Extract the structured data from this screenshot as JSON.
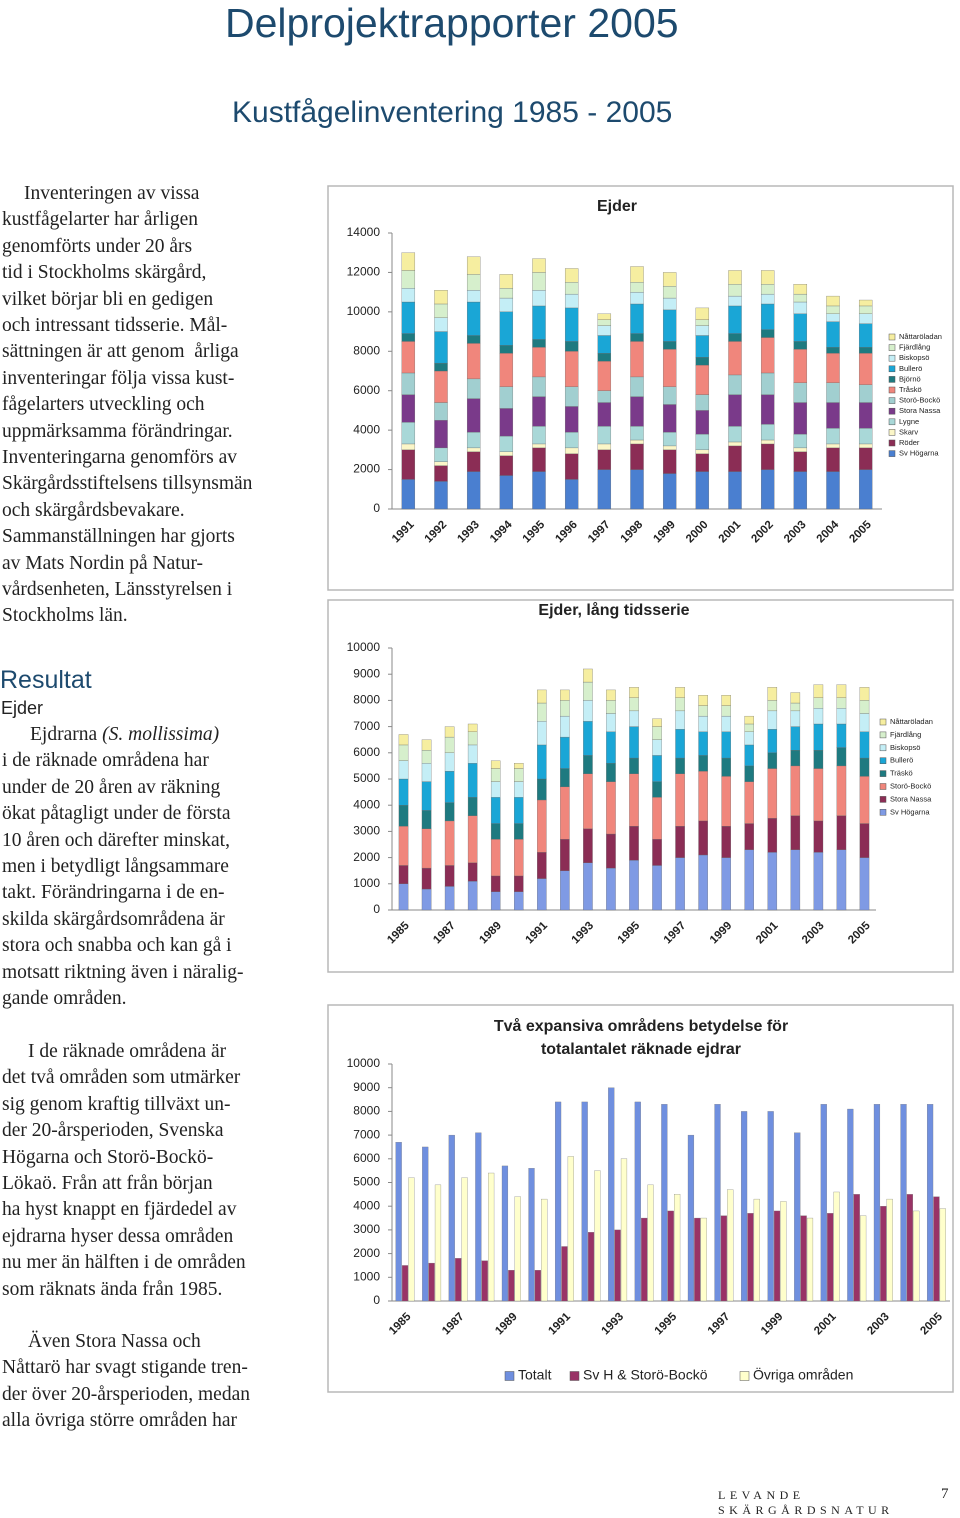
{
  "header": {
    "title": "Delprojektrapporter 2005",
    "subtitle": "Kustfågelinventering 1985 - 2005"
  },
  "intro": {
    "lines": [
      "Inventeringen av vissa",
      "kustfågelarter har årligen",
      "genomförts under 20 års",
      "tid i Stockholms skärgård,",
      "vilket börjar bli en gedigen",
      "och intressant tidsserie. Mål-",
      "sättningen är att genom  årliga",
      "inventeringar följa vissa kust-",
      "fågelarters utveckling och",
      "uppmärksamma förändringar.",
      "Inventeringarna genomförs av",
      "Skärgårdsstiftelsens tillsynsmän",
      "och skärgårdsbevakare.",
      "Sammanställningen har gjorts",
      "av Mats Nordin på Natur-",
      "vårdsenheten, Länsstyrelsen i",
      "Stockholms län."
    ]
  },
  "results": {
    "heading": "Resultat",
    "subheading": "Ejder",
    "lead": "Ejdrarna",
    "latin": "(S. mollissima)",
    "lines": [
      "i de räknade områdena har",
      "under de 20 åren av räkning",
      "ökat påtagligt under de första",
      "10 åren och därefter minskat,",
      "men i betydligt långsammare",
      "takt. Förändringarna i de en-",
      "skilda skärgårdsområdena är",
      "stora och snabba och kan gå i",
      "motsatt riktning även i näralig-",
      "gande områden."
    ]
  },
  "paragraphs": [
    [
      "I de räknade områdena är",
      "det två områden som utmärker",
      "sig genom kraftig tillväxt un-",
      "der 20-årsperioden, Svenska",
      "Högarna och Storö-Bockö-",
      "Lökaö. Från att från början",
      "ha hyst knappt en fjärdedel av",
      "ejdrarna hyser dessa områden",
      "nu mer än hälften i de områden",
      "som räknats ända från 1985."
    ],
    [
      "Även Stora Nassa och",
      "Nåttarö har svagt stigande tren-",
      "der över 20-årsperioden, medan",
      "alla övriga större områden har"
    ]
  ],
  "chart_data": [
    {
      "type": "bar",
      "stacked": true,
      "title": [
        "Ejder"
      ],
      "categories": [
        "1991",
        "1992",
        "1993",
        "1994",
        "1995",
        "1996",
        "1997",
        "1998",
        "1999",
        "2000",
        "2001",
        "2002",
        "2003",
        "2004",
        "2005"
      ],
      "ylim": [
        0,
        14000
      ],
      "yticks": [
        0,
        2000,
        4000,
        6000,
        8000,
        10000,
        12000,
        14000
      ],
      "legend": "right",
      "series": [
        {
          "name": "Nåttaröladan",
          "color": "#f6eea0",
          "values": [
            900,
            700,
            900,
            700,
            700,
            700,
            300,
            800,
            700,
            600,
            700,
            700,
            500,
            500,
            300
          ]
        },
        {
          "name": "Fjärdlång",
          "color": "#d6efcc",
          "values": [
            900,
            700,
            800,
            500,
            900,
            600,
            300,
            500,
            600,
            300,
            600,
            500,
            400,
            400,
            400
          ]
        },
        {
          "name": "Biskopsö",
          "color": "#c4eef6",
          "values": [
            700,
            700,
            600,
            700,
            800,
            700,
            500,
            600,
            600,
            500,
            500,
            500,
            600,
            400,
            500
          ]
        },
        {
          "name": "Bullerö",
          "color": "#1aa6d6",
          "values": [
            1600,
            1600,
            1700,
            1700,
            1700,
            1700,
            900,
            1500,
            1600,
            1100,
            1400,
            1300,
            1400,
            1300,
            1200
          ]
        },
        {
          "name": "Björnö",
          "color": "#1e7a80",
          "values": [
            400,
            400,
            400,
            400,
            400,
            500,
            400,
            400,
            400,
            400,
            400,
            400,
            400,
            300,
            300
          ]
        },
        {
          "name": "Tråskö",
          "color": "#f0867c",
          "values": [
            1600,
            1600,
            1800,
            1700,
            1500,
            1800,
            1500,
            1800,
            1900,
            1500,
            1700,
            1800,
            1700,
            1500,
            1600
          ]
        },
        {
          "name": "Storö-Bockö",
          "color": "#a1cfd0",
          "values": [
            1100,
            900,
            1000,
            1100,
            1000,
            1000,
            600,
            1000,
            900,
            800,
            1000,
            1100,
            1000,
            1000,
            900
          ]
        },
        {
          "name": "Stora Nassa",
          "color": "#7a3a8a",
          "values": [
            1400,
            1400,
            1700,
            1400,
            1500,
            1300,
            1200,
            1500,
            1400,
            1200,
            1600,
            1500,
            1600,
            1300,
            1300
          ]
        },
        {
          "name": "Lygne",
          "color": "#a9d8d8",
          "values": [
            1100,
            700,
            800,
            800,
            900,
            800,
            900,
            700,
            700,
            800,
            800,
            800,
            700,
            800,
            800
          ]
        },
        {
          "name": "Skarv",
          "color": "#fbf6c8",
          "values": [
            300,
            200,
            200,
            200,
            200,
            300,
            300,
            200,
            200,
            200,
            200,
            200,
            200,
            200,
            200
          ]
        },
        {
          "name": "Röder",
          "color": "#8b2d55",
          "values": [
            1500,
            800,
            1000,
            1000,
            1200,
            1300,
            1000,
            1300,
            1200,
            900,
            1300,
            1300,
            1000,
            1200,
            1100
          ]
        },
        {
          "name": "Sv Högarna",
          "color": "#4a7fd0",
          "values": [
            1500,
            1400,
            1900,
            1700,
            1900,
            1500,
            2000,
            2000,
            1800,
            1900,
            1900,
            2000,
            1900,
            1900,
            2000
          ]
        }
      ]
    },
    {
      "type": "bar",
      "stacked": true,
      "title": [
        "Ejder, lång tidsserie"
      ],
      "categories": [
        "1985",
        null,
        "1987",
        null,
        "1989",
        null,
        "1991",
        null,
        "1993",
        null,
        "1995",
        null,
        "1997",
        null,
        "1999",
        null,
        "2001",
        null,
        "2003",
        null,
        "2005"
      ],
      "ylim": [
        0,
        10000
      ],
      "yticks": [
        0,
        1000,
        2000,
        3000,
        4000,
        5000,
        6000,
        7000,
        8000,
        9000,
        10000
      ],
      "legend": "right",
      "series": [
        {
          "name": "Nåttaröladan",
          "color": "#f6eea0",
          "values": [
            400,
            400,
            400,
            300,
            300,
            200,
            500,
            400,
            500,
            400,
            400,
            300,
            400,
            400,
            400,
            300,
            500,
            400,
            500,
            500,
            500
          ]
        },
        {
          "name": "Fjärdlång",
          "color": "#d6efcc",
          "values": [
            600,
            500,
            600,
            500,
            500,
            500,
            700,
            600,
            700,
            500,
            500,
            500,
            500,
            400,
            400,
            300,
            400,
            300,
            400,
            400,
            500
          ]
        },
        {
          "name": "Biskopsö",
          "color": "#c4eef6",
          "values": [
            700,
            700,
            700,
            700,
            600,
            600,
            900,
            800,
            800,
            700,
            600,
            600,
            700,
            600,
            600,
            500,
            700,
            600,
            600,
            600,
            700
          ]
        },
        {
          "name": "Bullerö",
          "color": "#1aa6d6",
          "values": [
            1000,
            1100,
            1200,
            1300,
            1000,
            1000,
            1300,
            1200,
            1300,
            1200,
            1200,
            1000,
            1100,
            900,
            1000,
            800,
            900,
            900,
            1000,
            900,
            1000
          ]
        },
        {
          "name": "Träskö",
          "color": "#1e7a80",
          "values": [
            800,
            700,
            700,
            700,
            600,
            600,
            800,
            700,
            700,
            700,
            600,
            600,
            600,
            600,
            700,
            600,
            600,
            600,
            700,
            700,
            700
          ]
        },
        {
          "name": "Storö-Bockö",
          "color": "#f0867c",
          "values": [
            1500,
            1500,
            1700,
            1800,
            1400,
            1400,
            2000,
            2000,
            2100,
            2000,
            2000,
            1600,
            2000,
            1900,
            1900,
            1600,
            1900,
            1900,
            2000,
            1900,
            1800
          ]
        },
        {
          "name": "Stora Nassa",
          "color": "#8b2d55",
          "values": [
            700,
            800,
            800,
            700,
            600,
            600,
            1000,
            1200,
            1300,
            1300,
            1300,
            1000,
            1200,
            1300,
            1200,
            1000,
            1300,
            1300,
            1200,
            1300,
            1300
          ]
        },
        {
          "name": "Sv Högarna",
          "color": "#7f9ae4",
          "values": [
            1000,
            800,
            900,
            1100,
            700,
            700,
            1200,
            1500,
            1800,
            1600,
            1900,
            1700,
            2000,
            2100,
            2000,
            2300,
            2200,
            2300,
            2200,
            2300,
            2000
          ]
        }
      ]
    },
    {
      "type": "bar",
      "stacked": false,
      "title": [
        "Två expansiva områdens betydelse för",
        "totalantalet räknade ejdrar"
      ],
      "categories": [
        "1985",
        null,
        "1987",
        null,
        "1989",
        null,
        "1991",
        null,
        "1993",
        null,
        "1995",
        null,
        "1997",
        null,
        "1999",
        null,
        "2001",
        null,
        "2003",
        null,
        "2005"
      ],
      "ylim": [
        0,
        10000
      ],
      "yticks": [
        0,
        1000,
        2000,
        3000,
        4000,
        5000,
        6000,
        7000,
        8000,
        9000,
        10000
      ],
      "legend": "bottom",
      "series": [
        {
          "name": "Totalt",
          "color": "#6f8fdf",
          "values": [
            6700,
            6500,
            7000,
            7100,
            5700,
            5600,
            8400,
            8400,
            9000,
            8400,
            8300,
            7000,
            8300,
            8000,
            8000,
            7100,
            8300,
            8100,
            8300,
            8300,
            8300
          ]
        },
        {
          "name": "Sv H & Storö-Bockö",
          "color": "#993366",
          "values": [
            1500,
            1600,
            1800,
            1700,
            1300,
            1300,
            2300,
            2900,
            3000,
            3500,
            3800,
            3500,
            3600,
            3700,
            3800,
            3600,
            3700,
            4500,
            4000,
            4500,
            4400
          ]
        },
        {
          "name": "Övriga områden",
          "color": "#ffffcc",
          "values": [
            5200,
            4900,
            5200,
            5400,
            4400,
            4300,
            6100,
            5500,
            6000,
            4900,
            4500,
            3500,
            4700,
            4300,
            4200,
            3500,
            4600,
            3600,
            4300,
            3800,
            3900
          ]
        }
      ]
    }
  ],
  "footer": {
    "text": "LEVANDE SKÄRGÅRDSNATUR",
    "page": 7
  }
}
